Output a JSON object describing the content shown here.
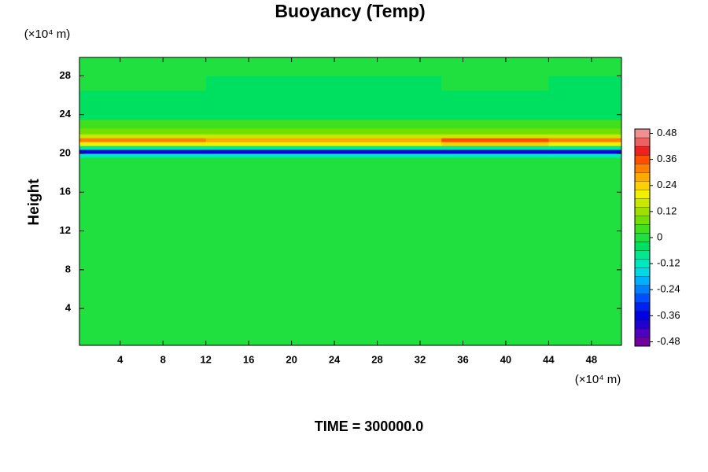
{
  "chart_data": {
    "type": "heatmap",
    "title": "Buoyancy (Temp)",
    "y_label": "Height",
    "y_unit": "(×10⁴ m)",
    "x_unit": "(×10⁴ m)",
    "footer": "TIME = 300000.0",
    "xlim": [
      0.2,
      50.8
    ],
    "ylim": [
      0.2,
      29.9
    ],
    "xticks": [
      4,
      8,
      12,
      16,
      20,
      24,
      28,
      32,
      36,
      40,
      44,
      48
    ],
    "yticks": [
      4,
      8,
      12,
      16,
      20,
      24,
      28
    ],
    "x_edges": [
      0.2,
      12,
      34,
      44,
      50.8
    ],
    "y_edges": [
      0.2,
      19.6,
      20.0,
      20.4,
      20.8,
      21.2,
      21.6,
      22.0,
      22.6,
      23.5,
      25,
      26.5,
      28,
      29.9
    ],
    "z": [
      [
        -0.02,
        -0.02,
        -0.02,
        -0.02
      ],
      [
        -0.12,
        -0.12,
        -0.14,
        -0.12
      ],
      [
        -0.36,
        -0.34,
        -0.38,
        -0.36
      ],
      [
        -0.08,
        -0.08,
        -0.08,
        -0.08
      ],
      [
        0.2,
        0.18,
        0.22,
        0.2
      ],
      [
        0.32,
        0.28,
        0.36,
        0.3
      ],
      [
        0.16,
        0.14,
        0.16,
        0.16
      ],
      [
        0.08,
        0.08,
        0.08,
        0.08
      ],
      [
        0.04,
        0.04,
        0.04,
        0.04
      ],
      [
        -0.04,
        -0.04,
        -0.04,
        -0.04
      ],
      [
        -0.06,
        -0.06,
        -0.06,
        -0.06
      ],
      [
        -0.02,
        -0.04,
        -0.02,
        -0.04
      ],
      [
        -0.02,
        -0.02,
        -0.02,
        -0.02
      ]
    ],
    "clim": [
      -0.5,
      0.5
    ],
    "colors": [
      "#7000a0",
      "#5000c0",
      "#2000d0",
      "#0000e0",
      "#0020f0",
      "#0050ff",
      "#0080ff",
      "#00b0ff",
      "#00d8e8",
      "#00e8c0",
      "#00e890",
      "#00e060",
      "#20e040",
      "#40e020",
      "#70e000",
      "#a0e000",
      "#c8e800",
      "#f0f000",
      "#ffd000",
      "#ffa800",
      "#ff8000",
      "#ff5000",
      "#f02020",
      "#f06060",
      "#f09090"
    ],
    "cticks": [
      -0.48,
      -0.36,
      -0.24,
      -0.12,
      0,
      0.12,
      0.24,
      0.36,
      0.48
    ]
  }
}
